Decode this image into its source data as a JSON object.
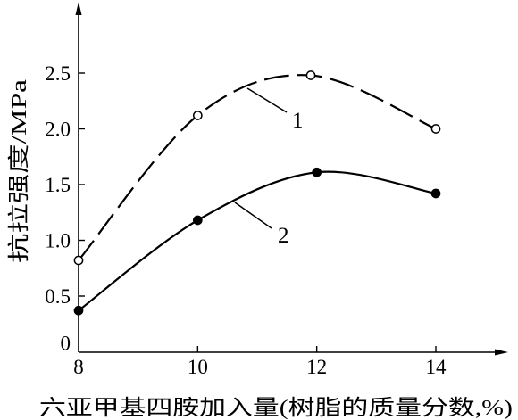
{
  "chart_data": {
    "type": "line",
    "xlabel": "六亚甲基四胺加入量(树脂的质量分数,%)",
    "ylabel": "抗拉强度/MPa",
    "xlim": [
      8,
      15.2
    ],
    "ylim": [
      0,
      3.1
    ],
    "x_ticks": [
      8,
      10,
      12,
      14
    ],
    "x_tick_labels": [
      "8",
      "10",
      "12",
      "14"
    ],
    "y_ticks": [
      0,
      0.5,
      1.0,
      1.5,
      2.0,
      2.5
    ],
    "y_tick_labels": [
      "0",
      "0.5",
      "1.0",
      "1.5",
      "2.0",
      "2.5"
    ],
    "grid": false,
    "series": [
      {
        "name": "1",
        "dashed": true,
        "marker_filled": false,
        "x": [
          8,
          10,
          11.9,
          14
        ],
        "y": [
          0.82,
          2.12,
          2.48,
          2.0
        ]
      },
      {
        "name": "2",
        "dashed": false,
        "marker_filled": true,
        "x": [
          8,
          10,
          12,
          14
        ],
        "y": [
          0.37,
          1.18,
          1.61,
          1.42
        ]
      }
    ],
    "colors": {
      "line": "#000000",
      "background": "#ffffff",
      "open_marker_fill": "#ffffff"
    }
  }
}
